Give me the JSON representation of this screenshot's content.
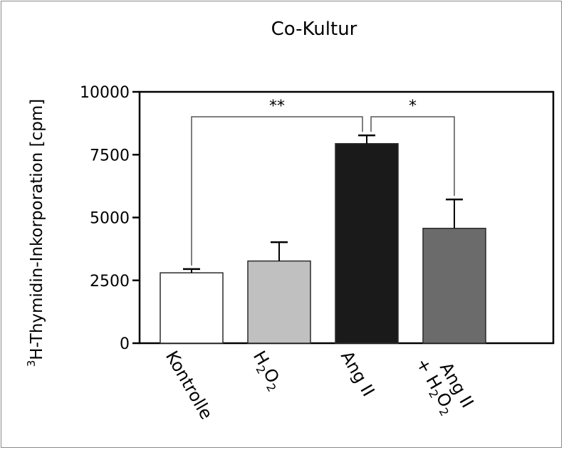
{
  "chart_data": {
    "type": "bar",
    "title": "Co-Kultur",
    "ylabel": {
      "superscript": "3",
      "text": "H-Thymidin-Inkorporation [cpm]"
    },
    "ylim": [
      0,
      10000
    ],
    "yticks": [
      0,
      2500,
      5000,
      7500,
      10000
    ],
    "ytick_labels": [
      "0",
      "2500",
      "5000",
      "7500",
      "10000"
    ],
    "categories": [
      {
        "parts": [
          {
            "t": "Kontrolle"
          }
        ]
      },
      {
        "parts": [
          {
            "t": "H"
          },
          {
            "t": "2",
            "sub": true
          },
          {
            "t": "O"
          },
          {
            "t": "2",
            "sub": true
          }
        ]
      },
      {
        "parts": [
          {
            "t": "Ang II"
          }
        ]
      },
      {
        "lines": [
          [
            {
              "t": "Ang II"
            }
          ],
          [
            {
              "t": "+ H"
            },
            {
              "t": "2",
              "sub": true
            },
            {
              "t": "O"
            },
            {
              "t": "2",
              "sub": true
            }
          ]
        ]
      }
    ],
    "values": [
      2800,
      3270,
      7940,
      4570
    ],
    "errors": [
      150,
      750,
      330,
      1150
    ],
    "bar_colors": [
      "#ffffff",
      "#c0c0c0",
      "#1a1a1a",
      "#6b6b6b"
    ],
    "significance": [
      {
        "from": 0,
        "to": 2,
        "label": "**"
      },
      {
        "from": 2,
        "to": 3,
        "label": "*"
      }
    ],
    "grid": false
  }
}
